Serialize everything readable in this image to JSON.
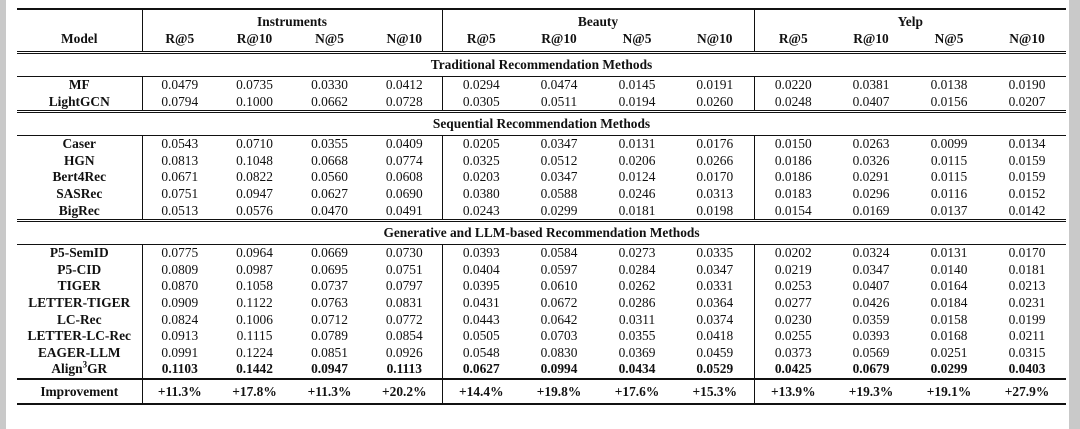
{
  "table": {
    "model_header": "Model",
    "col_groups": [
      "Instruments",
      "Beauty",
      "Yelp"
    ],
    "metric_headers": [
      "R@5",
      "R@10",
      "N@5",
      "N@10"
    ],
    "sections": [
      {
        "title": "Traditional Recommendation Methods",
        "rows": [
          {
            "model": "MF",
            "best": false,
            "values": [
              "0.0479",
              "0.0735",
              "0.0330",
              "0.0412",
              "0.0294",
              "0.0474",
              "0.0145",
              "0.0191",
              "0.0220",
              "0.0381",
              "0.0138",
              "0.0190"
            ]
          },
          {
            "model": "LightGCN",
            "best": false,
            "values": [
              "0.0794",
              "0.1000",
              "0.0662",
              "0.0728",
              "0.0305",
              "0.0511",
              "0.0194",
              "0.0260",
              "0.0248",
              "0.0407",
              "0.0156",
              "0.0207"
            ]
          }
        ]
      },
      {
        "title": "Sequential Recommendation Methods",
        "rows": [
          {
            "model": "Caser",
            "best": false,
            "values": [
              "0.0543",
              "0.0710",
              "0.0355",
              "0.0409",
              "0.0205",
              "0.0347",
              "0.0131",
              "0.0176",
              "0.0150",
              "0.0263",
              "0.0099",
              "0.0134"
            ]
          },
          {
            "model": "HGN",
            "best": false,
            "values": [
              "0.0813",
              "0.1048",
              "0.0668",
              "0.0774",
              "0.0325",
              "0.0512",
              "0.0206",
              "0.0266",
              "0.0186",
              "0.0326",
              "0.0115",
              "0.0159"
            ]
          },
          {
            "model": "Bert4Rec",
            "best": false,
            "values": [
              "0.0671",
              "0.0822",
              "0.0560",
              "0.0608",
              "0.0203",
              "0.0347",
              "0.0124",
              "0.0170",
              "0.0186",
              "0.0291",
              "0.0115",
              "0.0159"
            ]
          },
          {
            "model": "SASRec",
            "best": false,
            "values": [
              "0.0751",
              "0.0947",
              "0.0627",
              "0.0690",
              "0.0380",
              "0.0588",
              "0.0246",
              "0.0313",
              "0.0183",
              "0.0296",
              "0.0116",
              "0.0152"
            ]
          },
          {
            "model": "BigRec",
            "best": false,
            "values": [
              "0.0513",
              "0.0576",
              "0.0470",
              "0.0491",
              "0.0243",
              "0.0299",
              "0.0181",
              "0.0198",
              "0.0154",
              "0.0169",
              "0.0137",
              "0.0142"
            ]
          }
        ]
      },
      {
        "title": "Generative and LLM-based Recommendation Methods",
        "rows": [
          {
            "model": "P5-SemID",
            "best": false,
            "values": [
              "0.0775",
              "0.0964",
              "0.0669",
              "0.0730",
              "0.0393",
              "0.0584",
              "0.0273",
              "0.0335",
              "0.0202",
              "0.0324",
              "0.0131",
              "0.0170"
            ]
          },
          {
            "model": "P5-CID",
            "best": false,
            "values": [
              "0.0809",
              "0.0987",
              "0.0695",
              "0.0751",
              "0.0404",
              "0.0597",
              "0.0284",
              "0.0347",
              "0.0219",
              "0.0347",
              "0.0140",
              "0.0181"
            ]
          },
          {
            "model": "TIGER",
            "best": false,
            "values": [
              "0.0870",
              "0.1058",
              "0.0737",
              "0.0797",
              "0.0395",
              "0.0610",
              "0.0262",
              "0.0331",
              "0.0253",
              "0.0407",
              "0.0164",
              "0.0213"
            ]
          },
          {
            "model": "LETTER-TIGER",
            "best": false,
            "values": [
              "0.0909",
              "0.1122",
              "0.0763",
              "0.0831",
              "0.0431",
              "0.0672",
              "0.0286",
              "0.0364",
              "0.0277",
              "0.0426",
              "0.0184",
              "0.0231"
            ]
          },
          {
            "model": "LC-Rec",
            "best": false,
            "values": [
              "0.0824",
              "0.1006",
              "0.0712",
              "0.0772",
              "0.0443",
              "0.0642",
              "0.0311",
              "0.0374",
              "0.0230",
              "0.0359",
              "0.0158",
              "0.0199"
            ]
          },
          {
            "model": "LETTER-LC-Rec",
            "best": false,
            "values": [
              "0.0913",
              "0.1115",
              "0.0789",
              "0.0854",
              "0.0505",
              "0.0703",
              "0.0355",
              "0.0418",
              "0.0255",
              "0.0393",
              "0.0168",
              "0.0211"
            ]
          },
          {
            "model": "EAGER-LLM",
            "best": false,
            "values": [
              "0.0991",
              "0.1224",
              "0.0851",
              "0.0926",
              "0.0548",
              "0.0830",
              "0.0369",
              "0.0459",
              "0.0373",
              "0.0569",
              "0.0251",
              "0.0315"
            ]
          },
          {
            "model": "Align³GR",
            "model_base": "Align",
            "model_sup": "3",
            "model_tail": "GR",
            "best": true,
            "values": [
              "0.1103",
              "0.1442",
              "0.0947",
              "0.1113",
              "0.0627",
              "0.0994",
              "0.0434",
              "0.0529",
              "0.0425",
              "0.0679",
              "0.0299",
              "0.0403"
            ]
          }
        ]
      }
    ],
    "improvement": {
      "label": "Improvement",
      "values": [
        "+11.3%",
        "+17.8%",
        "+11.3%",
        "+20.2%",
        "+14.4%",
        "+19.8%",
        "+17.6%",
        "+15.3%",
        "+13.9%",
        "+19.3%",
        "+19.1%",
        "+27.9%"
      ]
    }
  }
}
